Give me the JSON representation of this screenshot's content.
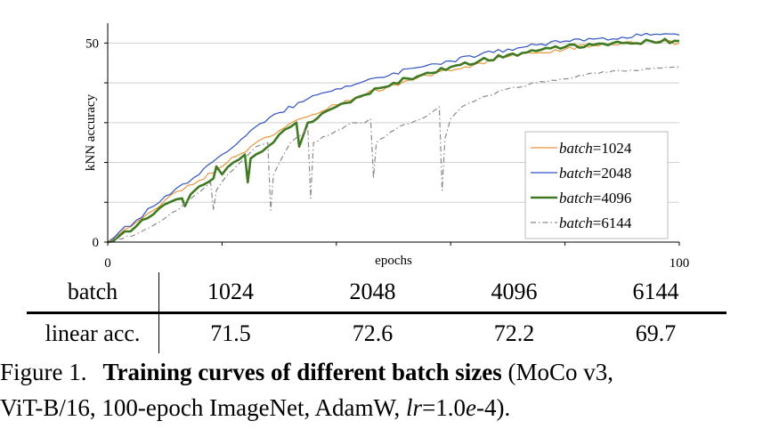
{
  "colors": {
    "series_1024": "#e8963a",
    "series_2048": "#2f50c2",
    "series_4096": "#3f7a22",
    "series_6144": "#8a8a8a",
    "grid": "#d0d0d0",
    "axis": "#000000"
  },
  "chart_data": {
    "type": "line",
    "title": "",
    "xlabel": "epochs",
    "ylabel": "kNN accuracy",
    "xlim": [
      0,
      100
    ],
    "ylim": [
      0,
      55
    ],
    "x_ticks": [
      0,
      20,
      40,
      60,
      80,
      100
    ],
    "x_tick_labels": [
      "0",
      "",
      "",
      "",
      "",
      "100"
    ],
    "y_ticks": [
      0,
      10,
      20,
      30,
      40,
      50
    ],
    "y_tick_labels": [
      "0",
      "",
      "",
      "",
      "",
      "50"
    ],
    "grid": true,
    "legend_position": "right",
    "series": [
      {
        "name": "batch=1024",
        "key": "1024",
        "style": "solid",
        "x": [
          0,
          2,
          5,
          8,
          10,
          13,
          16,
          20,
          25,
          30,
          35,
          40,
          45,
          50,
          55,
          60,
          65,
          70,
          75,
          80,
          85,
          90,
          95,
          100
        ],
        "y": [
          0,
          2,
          5,
          8,
          10.5,
          13,
          15.5,
          19,
          24,
          28,
          31.5,
          34.5,
          37,
          39.5,
          42,
          43,
          45,
          46.5,
          47.5,
          48.5,
          49.5,
          50,
          50.5,
          50
        ]
      },
      {
        "name": "batch=2048",
        "key": "2048",
        "style": "solid",
        "x": [
          0,
          2,
          5,
          8,
          10,
          13,
          16,
          20,
          25,
          30,
          35,
          40,
          45,
          50,
          55,
          60,
          65,
          70,
          75,
          80,
          85,
          90,
          95,
          100
        ],
        "y": [
          0,
          2.5,
          5.5,
          9,
          11.5,
          14.5,
          17,
          22,
          28,
          32.5,
          36,
          38.5,
          40.5,
          42.5,
          44,
          45.5,
          47,
          48.5,
          49.5,
          50.5,
          51,
          51.5,
          52,
          52
        ]
      },
      {
        "name": "batch=4096",
        "key": "4096",
        "style": "solid",
        "x": [
          0,
          2,
          5,
          8,
          10,
          13,
          13.5,
          14.5,
          16,
          18.5,
          19,
          20,
          22,
          24,
          24.5,
          25,
          28,
          30,
          33,
          33.5,
          35,
          40,
          45,
          50,
          55,
          60,
          65,
          70,
          75,
          80,
          85,
          90,
          95,
          100
        ],
        "y": [
          0,
          1.5,
          4,
          7,
          9.5,
          11,
          9,
          12,
          14,
          16,
          19,
          17,
          20,
          22,
          15,
          21,
          24,
          27,
          30,
          24,
          30,
          34,
          37,
          40,
          42,
          44,
          45.5,
          47,
          48,
          49,
          49.5,
          50,
          50.5,
          50.5
        ]
      },
      {
        "name": "batch=6144",
        "key": "6144",
        "style": "dashdot",
        "x": [
          0,
          5,
          9,
          13,
          18,
          18.5,
          19,
          21,
          24,
          26,
          28,
          28.5,
          29,
          32,
          34,
          35,
          35.5,
          36,
          40,
          43,
          45,
          46,
          46.5,
          47,
          51,
          55,
          58,
          58.5,
          59,
          60,
          62,
          65,
          70,
          75,
          80,
          85,
          90,
          95,
          100
        ],
        "y": [
          0,
          2,
          5,
          9,
          15,
          8,
          13,
          17,
          21,
          24,
          25,
          8,
          17,
          25,
          27,
          29,
          11,
          25,
          28,
          30,
          30,
          31,
          16,
          25,
          29,
          31,
          34,
          13,
          26,
          31,
          34,
          36,
          38.5,
          40,
          41,
          42.5,
          43,
          43.5,
          44
        ]
      }
    ]
  },
  "table": {
    "header_label": "batch",
    "row_label": "linear acc.",
    "columns": [
      "1024",
      "2048",
      "4096",
      "6144"
    ],
    "values": [
      "71.5",
      "72.6",
      "72.2",
      "69.7"
    ]
  },
  "caption": {
    "figure_label": "Figure 1.",
    "bold_text": "Training curves of different batch sizes",
    "line1_rest": " (MoCo v3,",
    "line2_pre": "ViT-B/16, 100-epoch ImageNet, AdamW, ",
    "lr_symbol": "lr",
    "lr_eq": "=1.0",
    "lr_e": "e",
    "lr_tail": "-4)."
  }
}
